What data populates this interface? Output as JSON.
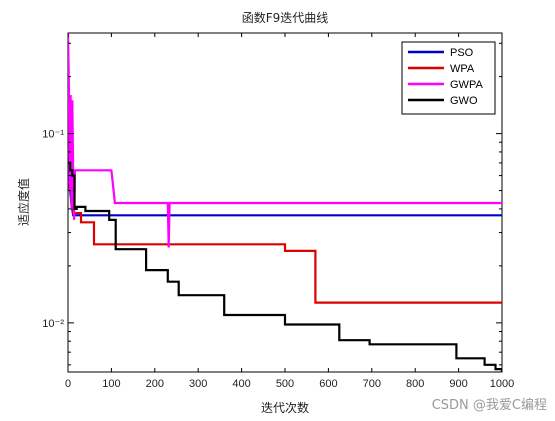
{
  "watermark": "CSDN @我爱C编程",
  "chart_data": {
    "type": "line",
    "title": "函数F9迭代曲线",
    "xlabel": "迭代次数",
    "ylabel": "适应度值",
    "xlim": [
      0,
      1000
    ],
    "ylim": [
      0.0055,
      0.34
    ],
    "yscale": "log",
    "grid": false,
    "legend_position": "top-right",
    "x_ticks": [
      0,
      100,
      200,
      300,
      400,
      500,
      600,
      700,
      800,
      900,
      1000
    ],
    "x_tick_labels": [
      "0",
      "100",
      "200",
      "300",
      "400",
      "500",
      "600",
      "700",
      "800",
      "900",
      "1000"
    ],
    "y_ticks": [
      0.01,
      0.1
    ],
    "y_tick_labels": [
      "10⁻²",
      "10⁻¹"
    ],
    "series": [
      {
        "name": "PSO",
        "color": "#0000cc",
        "x": [
          0,
          2,
          5,
          8,
          12,
          1000
        ],
        "y": [
          0.065,
          0.058,
          0.05,
          0.042,
          0.037,
          0.037
        ]
      },
      {
        "name": "WPA",
        "color": "#dd0000",
        "x": [
          0,
          5,
          8,
          12,
          30,
          55,
          60,
          460,
          500,
          565,
          570,
          1000
        ],
        "y": [
          0.055,
          0.05,
          0.045,
          0.038,
          0.034,
          0.034,
          0.026,
          0.026,
          0.024,
          0.024,
          0.0128,
          0.0128
        ],
        "step": true
      },
      {
        "name": "GWPA",
        "color": "#ff00ff",
        "x": [
          0,
          2,
          4,
          6,
          8,
          10,
          12,
          14,
          16,
          18,
          100,
          105,
          108,
          230,
          232,
          234,
          1000
        ],
        "y": [
          0.34,
          0.18,
          0.05,
          0.16,
          0.04,
          0.15,
          0.06,
          0.035,
          0.064,
          0.064,
          0.064,
          0.05,
          0.043,
          0.043,
          0.025,
          0.043,
          0.043
        ],
        "step": false
      },
      {
        "name": "GWO",
        "color": "#000000",
        "x": [
          0,
          5,
          10,
          15,
          20,
          40,
          95,
          110,
          180,
          230,
          255,
          360,
          500,
          625,
          695,
          895,
          960,
          985,
          1000
        ],
        "y": [
          0.07,
          0.064,
          0.06,
          0.04,
          0.041,
          0.039,
          0.035,
          0.0245,
          0.019,
          0.0165,
          0.014,
          0.011,
          0.0098,
          0.0081,
          0.0077,
          0.0065,
          0.006,
          0.0057,
          0.0055
        ],
        "step": true
      }
    ]
  }
}
